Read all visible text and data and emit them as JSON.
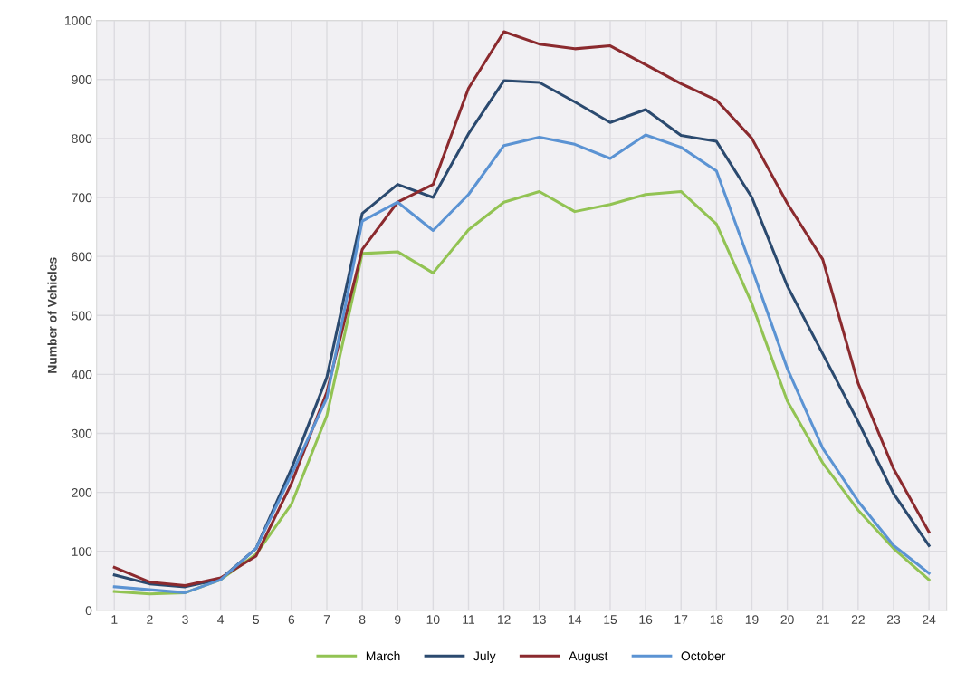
{
  "chart_data": {
    "type": "line",
    "ylabel": "Number of Vehicles",
    "categories": [
      "1",
      "2",
      "3",
      "4",
      "5",
      "6",
      "7",
      "8",
      "9",
      "10",
      "11",
      "12",
      "13",
      "14",
      "15",
      "16",
      "17",
      "18",
      "19",
      "20",
      "21",
      "22",
      "23",
      "24"
    ],
    "series": [
      {
        "name": "March",
        "color": "#92c353",
        "values": [
          32,
          28,
          30,
          52,
          95,
          180,
          330,
          605,
          608,
          572,
          645,
          692,
          710,
          676,
          688,
          705,
          710,
          655,
          520,
          355,
          250,
          170,
          105,
          52
        ]
      },
      {
        "name": "July",
        "color": "#2b4a6f",
        "values": [
          60,
          45,
          40,
          53,
          105,
          240,
          395,
          673,
          722,
          700,
          808,
          898,
          895,
          862,
          827,
          849,
          805,
          795,
          700,
          550,
          435,
          320,
          198,
          110
        ]
      },
      {
        "name": "August",
        "color": "#8b2a2e",
        "values": [
          73,
          48,
          42,
          55,
          92,
          215,
          370,
          612,
          692,
          722,
          885,
          981,
          960,
          952,
          957,
          925,
          893,
          865,
          800,
          690,
          595,
          385,
          240,
          133
        ]
      },
      {
        "name": "October",
        "color": "#5b93d3",
        "values": [
          40,
          35,
          30,
          52,
          105,
          230,
          360,
          660,
          692,
          644,
          705,
          788,
          802,
          790,
          766,
          806,
          785,
          745,
          580,
          410,
          275,
          185,
          110,
          63
        ]
      }
    ],
    "ylim": [
      0,
      1000
    ],
    "yticks": [
      0,
      100,
      200,
      300,
      400,
      500,
      600,
      700,
      800,
      900,
      1000
    ],
    "grid": true,
    "legend": "bottom",
    "marker": "none",
    "line_style": "solid"
  }
}
